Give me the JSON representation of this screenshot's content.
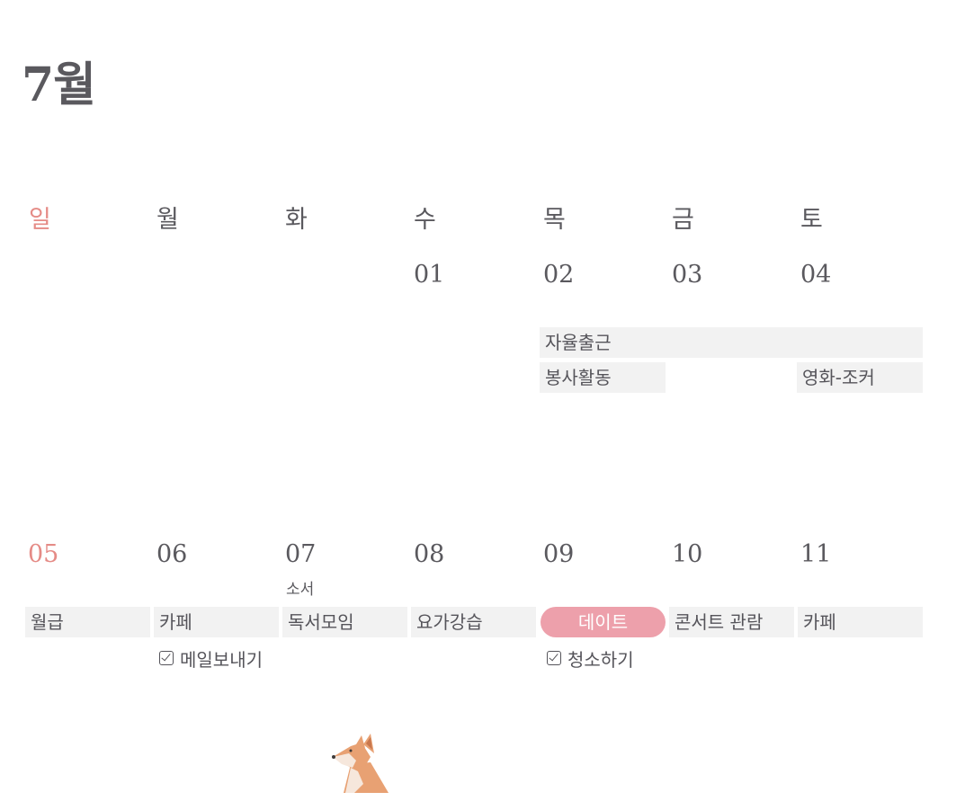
{
  "month_title": "7월",
  "weekdays": [
    "일",
    "월",
    "화",
    "수",
    "목",
    "금",
    "토"
  ],
  "week1": {
    "dates": {
      "wed": "01",
      "thu": "02",
      "fri": "03",
      "sat": "04"
    },
    "events": {
      "thu_fri_sat": "자율출근",
      "thu": "봉사활동",
      "sat": "영화-조커"
    }
  },
  "week2": {
    "dates": {
      "sun": "05",
      "mon": "06",
      "tue": "07",
      "wed": "08",
      "thu": "09",
      "fri": "10",
      "sat": "11"
    },
    "tue_note": "소서",
    "events": {
      "sun": "월급",
      "mon": "카페",
      "tue": "독서모임",
      "wed": "요가강습",
      "thu": "데이트",
      "fri": "콘서트 관람",
      "sat": "카페"
    },
    "todos": {
      "mon": "메일보내기",
      "thu": "청소하기"
    }
  },
  "colors": {
    "sunday": "#e58b86",
    "text": "#5a595e",
    "event_bg": "#f2f2f2",
    "highlight_event": "#eda0ab"
  },
  "decoration": "corgi-illustration"
}
